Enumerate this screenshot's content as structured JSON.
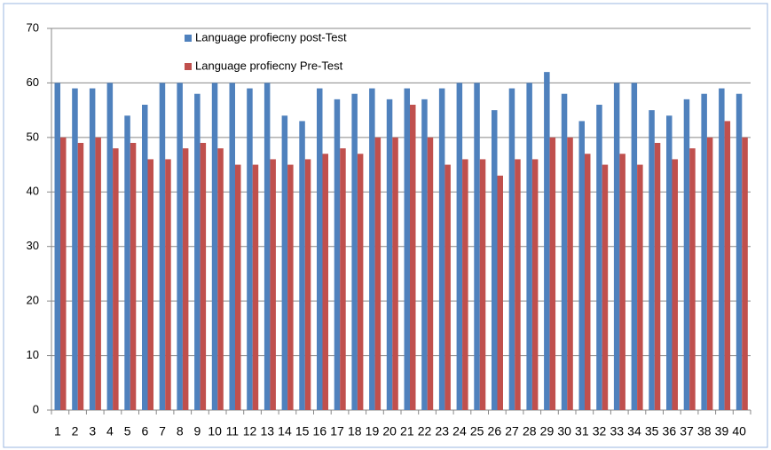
{
  "chart_data": {
    "type": "bar",
    "categories": [
      "1",
      "2",
      "3",
      "4",
      "5",
      "6",
      "7",
      "8",
      "9",
      "10",
      "11",
      "12",
      "13",
      "14",
      "15",
      "16",
      "17",
      "18",
      "19",
      "20",
      "21",
      "22",
      "23",
      "24",
      "25",
      "26",
      "27",
      "28",
      "29",
      "30",
      "31",
      "32",
      "33",
      "34",
      "35",
      "36",
      "37",
      "38",
      "39",
      "40"
    ],
    "series": [
      {
        "name": "Language profiecny post-Test",
        "color": "#4f81bd",
        "values": [
          60,
          59,
          59,
          60,
          54,
          56,
          60,
          60,
          58,
          60,
          60,
          59,
          60,
          54,
          53,
          59,
          57,
          58,
          59,
          57,
          59,
          57,
          59,
          60,
          60,
          55,
          59,
          60,
          62,
          58,
          53,
          56,
          60,
          60,
          55,
          54,
          57,
          58,
          59,
          58
        ]
      },
      {
        "name": "Language profiecny Pre-Test",
        "color": "#c0504d",
        "values": [
          50,
          49,
          50,
          48,
          49,
          46,
          46,
          48,
          49,
          48,
          45,
          45,
          46,
          45,
          46,
          47,
          48,
          47,
          50,
          50,
          56,
          50,
          45,
          46,
          46,
          43,
          46,
          46,
          50,
          50,
          47,
          45,
          47,
          45,
          49,
          46,
          48,
          50,
          53,
          50
        ]
      }
    ],
    "ylim": [
      0,
      70
    ],
    "yticks": [
      0,
      10,
      20,
      30,
      40,
      50,
      60,
      70
    ],
    "grid": true
  }
}
